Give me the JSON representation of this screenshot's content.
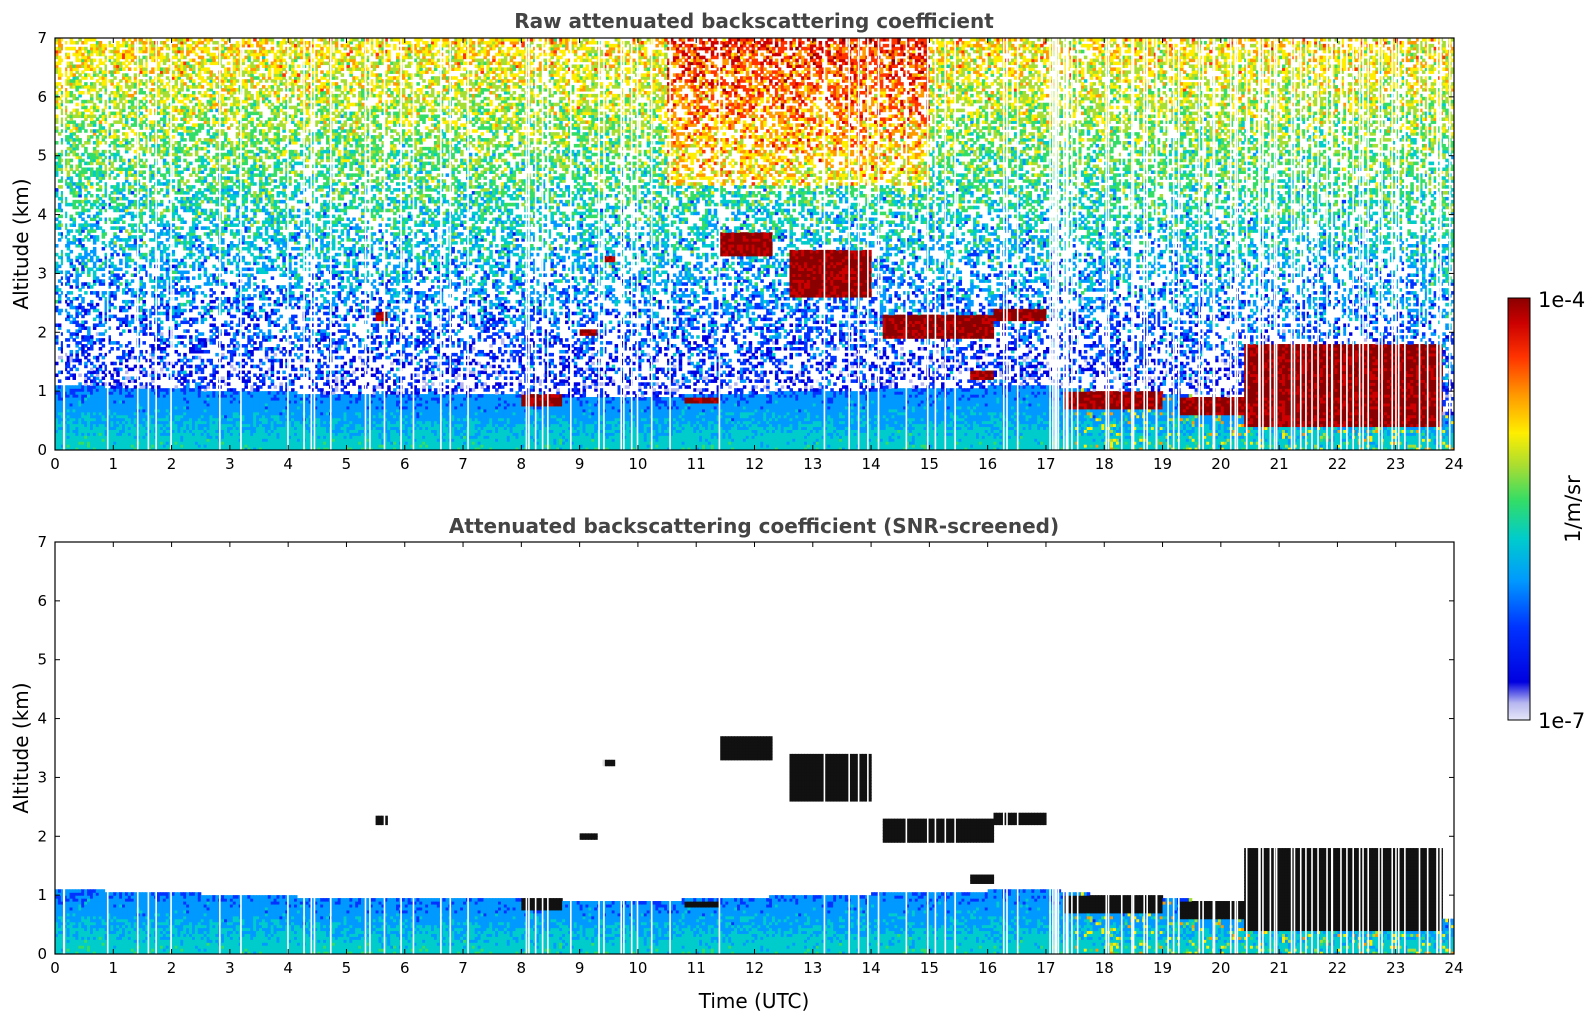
{
  "chart_data": [
    {
      "type": "heatmap",
      "title": "Raw attenuated backscattering coefficient",
      "xlabel": "",
      "ylabel": "Altitude (km)",
      "xlim": [
        0,
        24
      ],
      "ylim": [
        0,
        7
      ],
      "xticks": [
        "0",
        "1",
        "2",
        "3",
        "4",
        "5",
        "6",
        "7",
        "8",
        "9",
        "10",
        "11",
        "12",
        "13",
        "14",
        "15",
        "16",
        "17",
        "18",
        "19",
        "20",
        "21",
        "22",
        "23",
        "24"
      ],
      "yticks": [
        "0",
        "1",
        "2",
        "3",
        "4",
        "5",
        "6",
        "7"
      ],
      "grid": false,
      "features": [
        {
          "kind": "boundary_layer",
          "t_range": [
            0,
            24
          ],
          "top_km": [
            [
              0,
              1.1
            ],
            [
              5,
              0.95
            ],
            [
              7,
              0.95
            ],
            [
              10,
              0.9
            ],
            [
              13,
              1.0
            ],
            [
              17,
              1.1
            ],
            [
              18,
              1.0
            ],
            [
              20,
              0.9
            ],
            [
              22,
              1.0
            ],
            [
              23.8,
              0.6
            ]
          ]
        },
        {
          "kind": "cloud",
          "t": [
            8.0,
            8.7
          ],
          "alt_km": [
            0.75,
            0.95
          ]
        },
        {
          "kind": "cloud",
          "t": [
            10.8,
            11.4
          ],
          "alt_km": [
            0.8,
            0.9
          ]
        },
        {
          "kind": "cloud",
          "t": [
            11.4,
            12.3
          ],
          "alt_km": [
            3.3,
            3.7
          ]
        },
        {
          "kind": "cloud",
          "t": [
            12.6,
            14.0
          ],
          "alt_km": [
            2.6,
            3.4
          ]
        },
        {
          "kind": "cloud",
          "t": [
            14.2,
            16.1
          ],
          "alt_km": [
            1.9,
            2.3
          ]
        },
        {
          "kind": "cloud",
          "t": [
            16.1,
            17.0
          ],
          "alt_km": [
            2.2,
            2.4
          ]
        },
        {
          "kind": "cloud",
          "t": [
            15.7,
            16.1
          ],
          "alt_km": [
            1.2,
            1.35
          ]
        },
        {
          "kind": "cloud",
          "t": [
            17.3,
            19.0
          ],
          "alt_km": [
            0.7,
            1.0
          ]
        },
        {
          "kind": "cloud",
          "t": [
            19.3,
            20.5
          ],
          "alt_km": [
            0.6,
            0.9
          ]
        },
        {
          "kind": "cloud",
          "t": [
            20.4,
            23.8
          ],
          "alt_km": [
            0.4,
            1.8
          ]
        },
        {
          "kind": "cloud",
          "t": [
            5.5,
            5.7
          ],
          "alt_km": [
            2.2,
            2.35
          ]
        },
        {
          "kind": "cloud",
          "t": [
            9.4,
            9.6
          ],
          "alt_km": [
            3.2,
            3.3
          ]
        },
        {
          "kind": "cloud",
          "t": [
            9.0,
            9.3
          ],
          "alt_km": [
            1.95,
            2.05
          ]
        },
        {
          "kind": "aerosol_high",
          "t": [
            10.5,
            15.0
          ],
          "alt_km": [
            4.5,
            7.0
          ]
        }
      ]
    },
    {
      "type": "heatmap",
      "title": "Attenuated backscattering coefficient (SNR-screened)",
      "xlabel": "Time (UTC)",
      "ylabel": "Altitude (km)",
      "xlim": [
        0,
        24
      ],
      "ylim": [
        0,
        7
      ],
      "xticks": [
        "0",
        "1",
        "2",
        "3",
        "4",
        "5",
        "6",
        "7",
        "8",
        "9",
        "10",
        "11",
        "12",
        "13",
        "14",
        "15",
        "16",
        "17",
        "18",
        "19",
        "20",
        "21",
        "22",
        "23",
        "24"
      ],
      "yticks": [
        "0",
        "1",
        "2",
        "3",
        "4",
        "5",
        "6",
        "7"
      ],
      "grid": false,
      "screened_above_boundary_layer": true
    }
  ],
  "colorbar": {
    "label": "1/m/sr",
    "max_label": "1e-4",
    "min_label": "1e-7",
    "scale": "log",
    "range": [
      1e-07,
      0.0001
    ],
    "colormap": [
      "#e6e6f8",
      "#b7b7f0",
      "#0000e0",
      "#0033ff",
      "#0099ff",
      "#00cccc",
      "#33dd66",
      "#a6dd33",
      "#ffee00",
      "#ff9900",
      "#ff3300",
      "#cc0000",
      "#8b0000"
    ]
  }
}
